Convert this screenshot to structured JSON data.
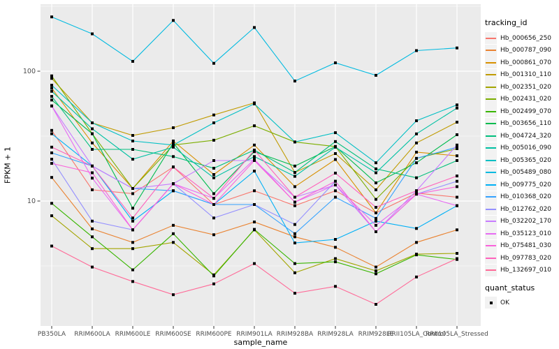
{
  "chart_data": {
    "type": "line",
    "xlabel": "sample_name",
    "ylabel": "FPKM + 1",
    "y_scale": "log10",
    "y_ticks": [
      10,
      100
    ],
    "y_minor_ticks": [
      3.162,
      31.62,
      316.2
    ],
    "ylim": [
      1.1,
      320
    ],
    "grid": "on",
    "legend_position": "right",
    "legend_title": "tracking_id",
    "quant_legend_title": "quant_status",
    "quant_legend_items": [
      {
        "label": "OK"
      }
    ],
    "point_color": "#000000",
    "categories": [
      "PB350LA",
      "RRIM600LA",
      "RRIM600LE",
      "RRIM600SE",
      "RRIM600PE",
      "RRIM901LA",
      "RRIM928BA",
      "RRIM928LA",
      "RRIM928LE",
      "RRII105LA_Control",
      "RRII105LA_Stressed"
    ],
    "series": [
      {
        "name": "Hb_000656_250",
        "color": "#F8766D",
        "values": [
          35,
          12.2,
          11.4,
          18.3,
          9.4,
          12,
          9.2,
          12,
          8.1,
          11.5,
          10.7
        ]
      },
      {
        "name": "Hb_000787_090",
        "color": "#EA8331",
        "values": [
          15.2,
          6.1,
          4.8,
          6.5,
          5.5,
          6.9,
          5.3,
          4.4,
          3.1,
          4.8,
          6
        ]
      },
      {
        "name": "Hb_000861_070",
        "color": "#D89000",
        "values": [
          74,
          28,
          12.5,
          29,
          16,
          27,
          12.9,
          20.9,
          8.1,
          23.8,
          22.3
        ]
      },
      {
        "name": "Hb_001310_110",
        "color": "#C09B00",
        "values": [
          88,
          40,
          32,
          36.7,
          46,
          57,
          16.6,
          23.2,
          12.2,
          28,
          40.5
        ]
      },
      {
        "name": "Hb_002351_020",
        "color": "#A3A500",
        "values": [
          7.7,
          4.3,
          4.3,
          4.8,
          2.7,
          6,
          2.8,
          3.6,
          2.9,
          3.9,
          3.95
        ]
      },
      {
        "name": "Hb_002431_020",
        "color": "#7CAE00",
        "values": [
          92,
          33,
          12.5,
          27,
          29.4,
          38,
          28.5,
          26.3,
          10.3,
          21.3,
          25.3
        ]
      },
      {
        "name": "Hb_002499_070",
        "color": "#39B600",
        "values": [
          9.6,
          5.3,
          2.95,
          5.6,
          2.65,
          6.05,
          3.3,
          3.4,
          2.75,
          3.85,
          3.55
        ]
      },
      {
        "name": "Hb_003656_110",
        "color": "#00BB4E",
        "values": [
          60,
          33,
          8.8,
          28,
          11.4,
          24,
          18.6,
          26.3,
          13.8,
          19.7,
          32.4
        ]
      },
      {
        "name": "Hb_004724_320",
        "color": "#00BF7D",
        "values": [
          64,
          25,
          25,
          22,
          17.9,
          24.7,
          16.6,
          28.7,
          17.7,
          15.1,
          20.5
        ]
      },
      {
        "name": "Hb_005016_090",
        "color": "#00C1A3",
        "values": [
          70,
          36,
          21,
          26,
          15.1,
          22,
          15.5,
          26,
          16.5,
          32.9,
          52
        ]
      },
      {
        "name": "Hb_005365_020",
        "color": "#00BFC4",
        "values": [
          78,
          40,
          29,
          27,
          40,
          56,
          28.5,
          33.6,
          19.7,
          41.5,
          55
        ]
      },
      {
        "name": "Hb_005489_080",
        "color": "#00BAE0",
        "values": [
          262,
          194,
          119,
          246,
          115,
          217,
          84,
          116,
          93,
          144,
          151
        ]
      },
      {
        "name": "Hb_009775_020",
        "color": "#00B0F6",
        "values": [
          33,
          18.6,
          7,
          12,
          9.4,
          17,
          4.75,
          5.06,
          7,
          6.15,
          9.2
        ]
      },
      {
        "name": "Hb_010368_020",
        "color": "#35A2FF",
        "values": [
          23.5,
          18.6,
          12.5,
          12,
          9.4,
          9.4,
          5.6,
          10.7,
          7.35,
          21.3,
          26
        ]
      },
      {
        "name": "Hb_012762_020",
        "color": "#9590FF",
        "values": [
          21,
          7,
          6,
          13.6,
          7.4,
          9.4,
          6.6,
          14.2,
          5.8,
          11.3,
          14.2
        ]
      },
      {
        "name": "Hb_032202_170",
        "color": "#C77CFF",
        "values": [
          54,
          18.6,
          12.5,
          13.6,
          20.5,
          20.5,
          10.7,
          13.3,
          5.8,
          12,
          27
        ]
      },
      {
        "name": "Hb_035123_010",
        "color": "#E76BF3",
        "values": [
          54,
          15,
          6,
          13.6,
          10.5,
          21,
          9.8,
          13.3,
          6.5,
          11.3,
          9.2
        ]
      },
      {
        "name": "Hb_075481_030",
        "color": "#FA62DB",
        "values": [
          19.5,
          16.5,
          6,
          13.6,
          9.4,
          20.5,
          9.8,
          14.2,
          5.8,
          11.3,
          12.9
        ]
      },
      {
        "name": "Hb_097783_020",
        "color": "#FF62BC",
        "values": [
          26,
          18.6,
          7.4,
          18.3,
          10.5,
          24.7,
          10.7,
          16.4,
          8.95,
          12,
          15.6
        ]
      },
      {
        "name": "Hb_132697_010",
        "color": "#FF6A98",
        "values": [
          4.5,
          3.1,
          2.4,
          1.9,
          2.3,
          3.3,
          1.95,
          2.2,
          1.6,
          2.6,
          3.6
        ]
      }
    ]
  },
  "theme": {
    "panel_bg": "#EBEBEB",
    "grid_color": "#FFFFFF",
    "tick_text_color": "#4D4D4D",
    "axis_title_color": "#000000",
    "legend_key_bg": "#F2F2F2",
    "page_bg": "#FFFFFF",
    "point_size": 4
  }
}
